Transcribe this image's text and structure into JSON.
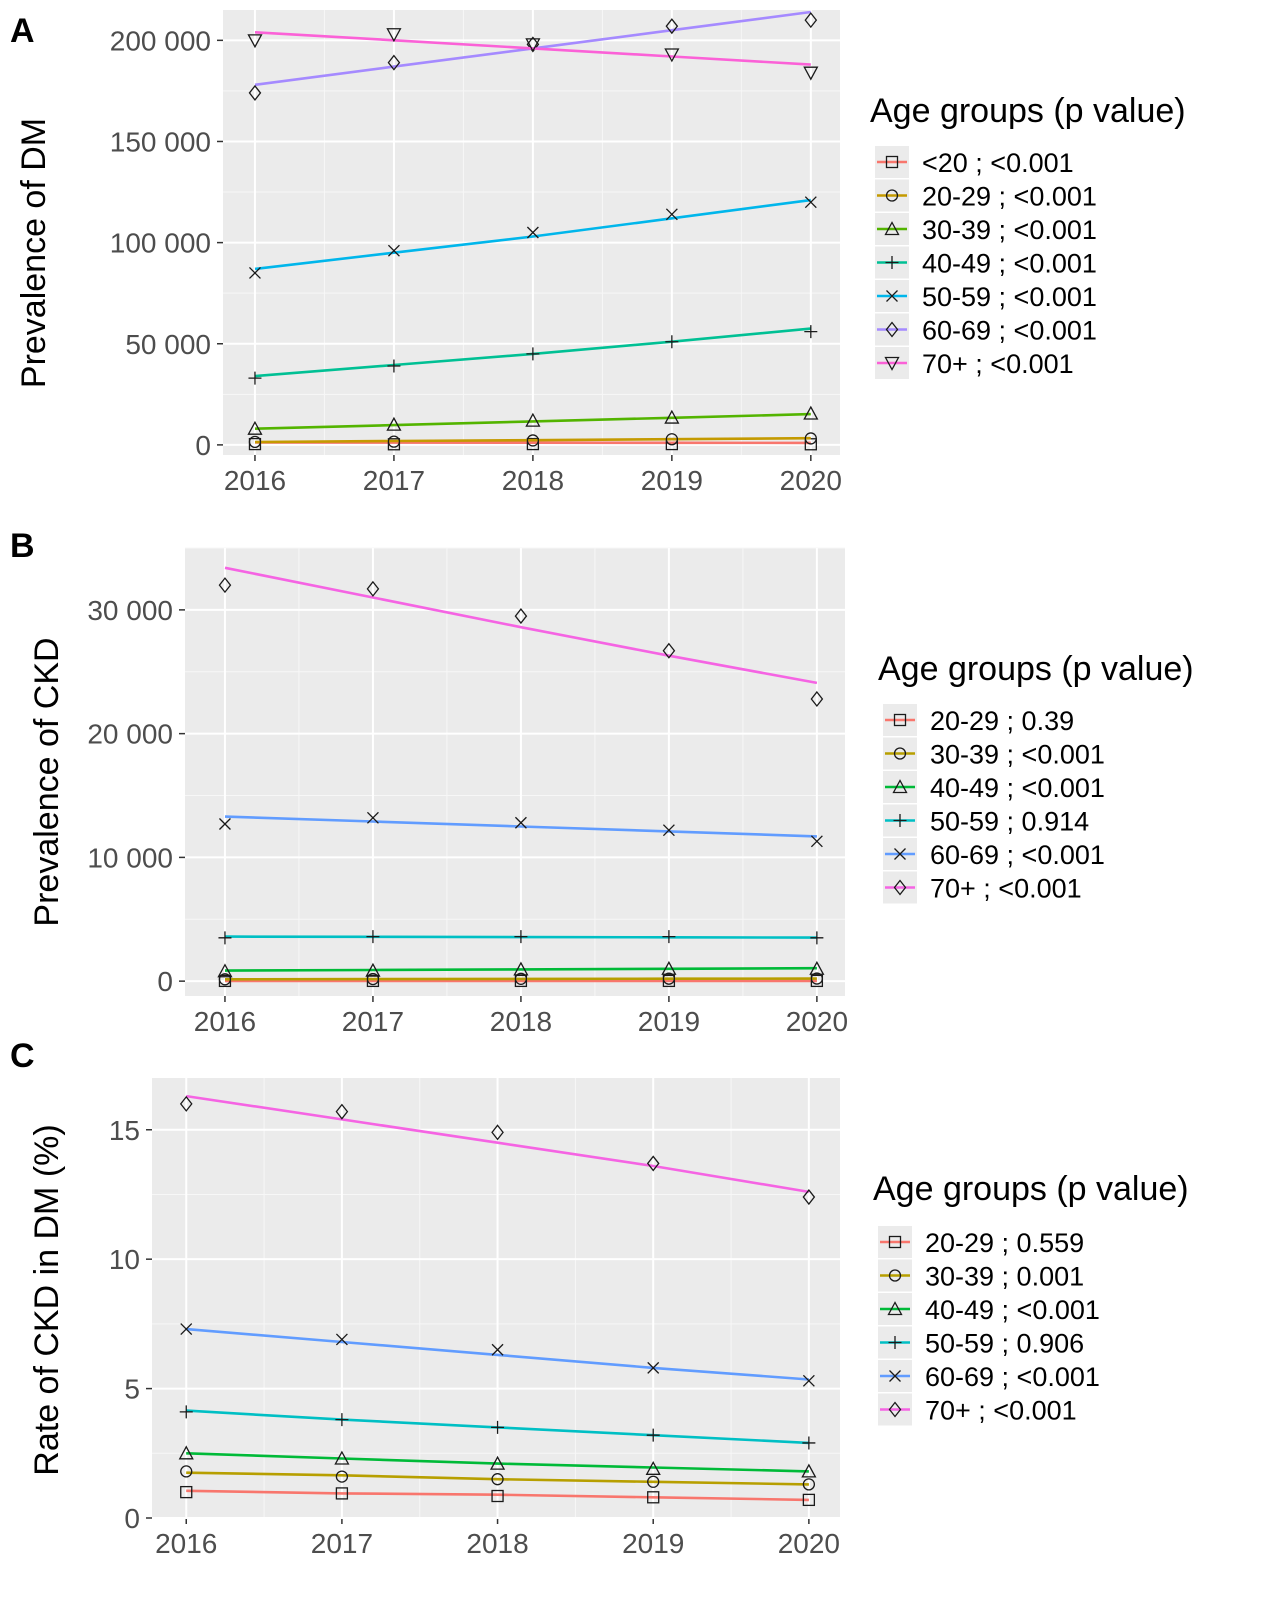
{
  "chart_data": [
    {
      "type": "line",
      "panel_label": "A",
      "ylabel": "Prevalence of DM",
      "xlabel": "",
      "x": [
        2016,
        2017,
        2018,
        2019,
        2020
      ],
      "x_tick_labels": [
        "2016",
        "2017",
        "2018",
        "2019",
        "2020"
      ],
      "ylim": [
        -5000,
        215000
      ],
      "y_ticks": [
        0,
        50000,
        100000,
        150000,
        200000
      ],
      "y_tick_labels": [
        "0",
        "50 000",
        "100 000",
        "150 000",
        "200 000"
      ],
      "legend_title": "Age groups (p value)",
      "legend_position": "right",
      "grid": true,
      "series": [
        {
          "name": "<20 ;  <0.001",
          "color": "#F8766D",
          "marker": "square",
          "points": [
            400,
            300,
            400,
            400,
            300
          ],
          "fit": [
            1200,
            1150,
            1100,
            1050,
            1000
          ]
        },
        {
          "name": "20-29 ;  <0.001",
          "color": "#C49A00",
          "marker": "circle",
          "points": [
            1500,
            1600,
            2200,
            2800,
            3200
          ],
          "fit": [
            1400,
            1900,
            2300,
            2800,
            3300
          ]
        },
        {
          "name": "30-39 ;  <0.001",
          "color": "#53B400",
          "marker": "triangle",
          "points": [
            8000,
            10000,
            12000,
            13500,
            15500
          ],
          "fit": [
            8000,
            9800,
            11600,
            13400,
            15200
          ]
        },
        {
          "name": "40-49 ;  <0.001",
          "color": "#00C094",
          "marker": "plus",
          "points": [
            33000,
            39000,
            45000,
            51000,
            56000
          ],
          "fit": [
            34000,
            39500,
            45000,
            51000,
            57500
          ]
        },
        {
          "name": "50-59 ;  <0.001",
          "color": "#00B6EB",
          "marker": "x",
          "points": [
            85000,
            96000,
            105000,
            114000,
            120000
          ],
          "fit": [
            87000,
            95000,
            103000,
            112000,
            121000
          ]
        },
        {
          "name": "60-69 ;  <0.001",
          "color": "#A58AFF",
          "marker": "diamond",
          "points": [
            174000,
            189000,
            198000,
            207000,
            210000
          ],
          "fit": [
            178000,
            187000,
            196000,
            205000,
            214000
          ]
        },
        {
          "name": "70+ ;  <0.001",
          "color": "#FB61D7",
          "marker": "triangle-down",
          "points": [
            200000,
            203000,
            198000,
            193000,
            184000
          ],
          "fit": [
            204000,
            200000,
            196000,
            192000,
            188000
          ]
        }
      ]
    },
    {
      "type": "line",
      "panel_label": "B",
      "ylabel": "Prevalence of CKD",
      "xlabel": "",
      "x": [
        2016,
        2017,
        2018,
        2019,
        2020
      ],
      "x_tick_labels": [
        "2016",
        "2017",
        "2018",
        "2019",
        "2020"
      ],
      "ylim": [
        -1200,
        35000
      ],
      "y_ticks": [
        0,
        10000,
        20000,
        30000
      ],
      "y_tick_labels": [
        "0",
        "10 000",
        "20 000",
        "30 000"
      ],
      "legend_title": "Age groups (p value)",
      "legend_position": "right",
      "grid": true,
      "series": [
        {
          "name": "20-29 ;  0.39",
          "color": "#F8766D",
          "marker": "square",
          "points": [
            20,
            20,
            20,
            20,
            20
          ],
          "fit": [
            20,
            20,
            20,
            20,
            20
          ]
        },
        {
          "name": "30-39 ;  <0.001",
          "color": "#B79F00",
          "marker": "circle",
          "points": [
            150,
            170,
            190,
            200,
            210
          ],
          "fit": [
            150,
            165,
            180,
            195,
            210
          ]
        },
        {
          "name": "40-49 ;  <0.001",
          "color": "#00BA38",
          "marker": "triangle",
          "points": [
            800,
            850,
            950,
            1000,
            1000
          ],
          "fit": [
            850,
            900,
            950,
            1000,
            1050
          ]
        },
        {
          "name": "50-59 ;  0.914",
          "color": "#00BFC4",
          "marker": "plus",
          "points": [
            3500,
            3600,
            3600,
            3600,
            3500
          ],
          "fit": [
            3600,
            3580,
            3560,
            3540,
            3520
          ]
        },
        {
          "name": "60-69 ;  <0.001",
          "color": "#619CFF",
          "marker": "x",
          "points": [
            12700,
            13200,
            12800,
            12200,
            11300
          ],
          "fit": [
            13300,
            12900,
            12500,
            12100,
            11700
          ]
        },
        {
          "name": "70+ ;  <0.001",
          "color": "#F564E3",
          "marker": "diamond",
          "points": [
            32000,
            31700,
            29500,
            26700,
            22800
          ],
          "fit": [
            33400,
            31000,
            28600,
            26300,
            24100
          ]
        }
      ]
    },
    {
      "type": "line",
      "panel_label": "C",
      "ylabel": "Rate of CKD in DM (%)",
      "xlabel": "",
      "x": [
        2016,
        2017,
        2018,
        2019,
        2020
      ],
      "x_tick_labels": [
        "2016",
        "2017",
        "2018",
        "2019",
        "2020"
      ],
      "ylim": [
        0,
        17
      ],
      "y_ticks": [
        0,
        5,
        10,
        15
      ],
      "y_tick_labels": [
        "0",
        "5",
        "10",
        "15"
      ],
      "legend_title": "Age groups (p value)",
      "legend_position": "right",
      "grid": true,
      "series": [
        {
          "name": "20-29 ;  0.559",
          "color": "#F8766D",
          "marker": "square",
          "points": [
            1.0,
            0.95,
            0.85,
            0.8,
            0.7
          ],
          "fit": [
            1.05,
            0.95,
            0.9,
            0.8,
            0.7
          ]
        },
        {
          "name": "30-39 ;  0.001",
          "color": "#B79F00",
          "marker": "circle",
          "points": [
            1.8,
            1.6,
            1.5,
            1.4,
            1.3
          ],
          "fit": [
            1.75,
            1.65,
            1.5,
            1.4,
            1.3
          ]
        },
        {
          "name": "40-49 ;  <0.001",
          "color": "#00BA38",
          "marker": "triangle",
          "points": [
            2.5,
            2.3,
            2.1,
            1.9,
            1.8
          ],
          "fit": [
            2.5,
            2.3,
            2.1,
            1.95,
            1.8
          ]
        },
        {
          "name": "50-59 ;  0.906",
          "color": "#00BFC4",
          "marker": "plus",
          "points": [
            4.1,
            3.8,
            3.5,
            3.2,
            2.9
          ],
          "fit": [
            4.15,
            3.8,
            3.5,
            3.2,
            2.9
          ]
        },
        {
          "name": "60-69 ;  <0.001",
          "color": "#619CFF",
          "marker": "x",
          "points": [
            7.3,
            6.9,
            6.5,
            5.8,
            5.3
          ],
          "fit": [
            7.3,
            6.8,
            6.3,
            5.8,
            5.35
          ]
        },
        {
          "name": "70+ ;  <0.001",
          "color": "#F564E3",
          "marker": "diamond",
          "points": [
            16.0,
            15.7,
            14.9,
            13.7,
            12.4
          ],
          "fit": [
            16.3,
            15.4,
            14.5,
            13.6,
            12.6
          ]
        }
      ]
    }
  ]
}
